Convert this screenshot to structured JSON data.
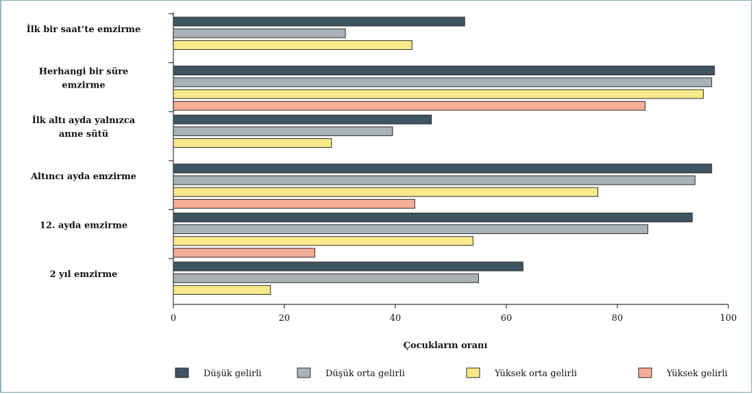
{
  "chart_data": {
    "type": "bar",
    "orientation": "horizontal",
    "title": "",
    "xlabel": "Çocukların oranı",
    "ylabel": "",
    "xlim": [
      0,
      100
    ],
    "xticks": [
      0,
      20,
      40,
      60,
      80,
      100
    ],
    "grid": false,
    "legend_position": "bottom",
    "categories": [
      [
        "İlk bir saat’te emzirme"
      ],
      [
        "Herhangi bir süre",
        "emzirme"
      ],
      [
        "İlk altı ayda yalnızca",
        "anne sütü"
      ],
      [
        "Altıncı ayda emzirme"
      ],
      [
        "12. ayda emzirme"
      ],
      [
        "2 yıl emzirme"
      ]
    ],
    "series": [
      {
        "name": "Düşük gelirli",
        "color": "#3f5561",
        "values": [
          52.5,
          97.5,
          46.5,
          97,
          93.5,
          63
        ]
      },
      {
        "name": "Düşük orta gelirli",
        "color": "#a9b2b6",
        "values": [
          31,
          97,
          39.5,
          94,
          85.5,
          55
        ]
      },
      {
        "name": "Yüksek orta gelirli",
        "color": "#f8e98a",
        "values": [
          43,
          95.5,
          28.5,
          76.5,
          54,
          17.5
        ]
      },
      {
        "name": "Yüksek gelirli",
        "color": "#f4ad97",
        "values": [
          null,
          85,
          null,
          43.5,
          25.5,
          null
        ]
      }
    ]
  }
}
